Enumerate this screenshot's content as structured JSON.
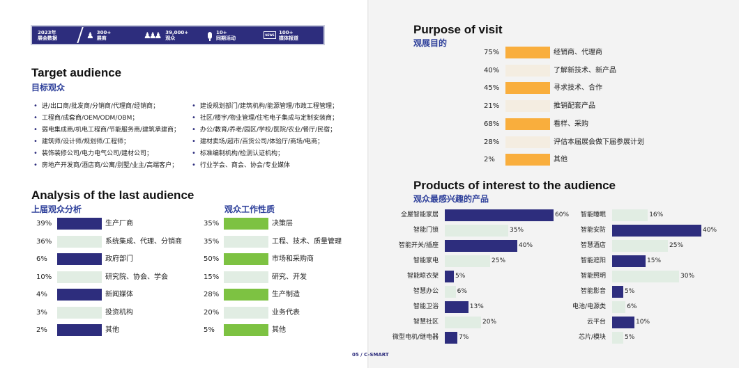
{
  "stats": {
    "year_line1": "2023年",
    "year_line2": "展会数据",
    "items": [
      {
        "icon": "people-icon",
        "value": "300+",
        "label": "展商"
      },
      {
        "icon": "crowd-icon",
        "value": "39,000+",
        "label": "观众"
      },
      {
        "icon": "microphone-icon",
        "value": "10+",
        "label": "同期活动"
      },
      {
        "icon": "news-icon",
        "icon_text": "NEWS",
        "value": "100+",
        "label": "媒体报道"
      }
    ]
  },
  "target": {
    "title": "Target audience",
    "subtitle": "目标观众",
    "left": [
      "进/出口商/批发商/分销商/代理商/经销商；",
      "工程商/成套商/OEM/ODM/OBM；",
      "弱电集成商/机电工程商/节能服务商/建筑承建商；",
      "建筑师/设计师/规划师/工程师；",
      "装饰装修公司/电力电气公司/建材公司；",
      "房地产开发商/酒店商/公寓/别墅/业主/高端客户；"
    ],
    "right": [
      "建设规划部门/建筑机构/能源管理/市政工程管理；",
      "社区/楼宇/物业管理/住宅电子集成与定制安装商；",
      "办公/教育/养老/园区/学校/医院/农业/餐厅/民宿；",
      "建材卖场/超市/百货公司/体验厅/商场/电商；",
      "标准编制机构/检测认证机构；",
      "行业学会、商会、协会/专业媒体"
    ]
  },
  "analysis": {
    "title": "Analysis of the last audience",
    "subtitle": "上届观众分析",
    "color_high": "#2d2d7d",
    "color_low": "#e1ede3",
    "chart_data": {
      "type": "bar",
      "categories": [
        "生产厂商",
        "系统集成、代理、分销商",
        "政府部门",
        "研究院、协会、学会",
        "新闻媒体",
        "投资机构",
        "其他"
      ],
      "values": [
        39,
        36,
        6,
        10,
        4,
        3,
        2
      ],
      "labels": [
        "39%",
        "36%",
        "6%",
        "10%",
        "4%",
        "3%",
        "2%"
      ],
      "highlight": [
        true,
        false,
        true,
        false,
        true,
        false,
        true
      ]
    }
  },
  "work": {
    "subtitle": "观众工作性质",
    "color_high": "#7dc242",
    "color_low": "#e1ede3",
    "chart_data": {
      "type": "bar",
      "categories": [
        "决策层",
        "工程、技术、质量管理",
        "市场和采购商",
        "研究、开发",
        "生产制造",
        "业务代表",
        "其他"
      ],
      "values": [
        35,
        35,
        50,
        15,
        28,
        20,
        5
      ],
      "labels": [
        "35%",
        "35%",
        "50%",
        "15%",
        "28%",
        "20%",
        "5%"
      ],
      "highlight": [
        true,
        false,
        true,
        false,
        true,
        false,
        true
      ]
    }
  },
  "purpose": {
    "title": "Purpose of visit",
    "subtitle": "观展目的",
    "color_high": "#f9ae3d",
    "color_low": "#f4ede1",
    "chart_data": {
      "type": "bar",
      "categories": [
        "经销商、代理商",
        "了解新技术、新产品",
        "寻求技术、合作",
        "推销配套产品",
        "看样、采购",
        "评估本届展会做下届参展计划",
        "其他"
      ],
      "values": [
        75,
        40,
        45,
        21,
        68,
        28,
        2
      ],
      "labels": [
        "75%",
        "40%",
        "45%",
        "21%",
        "68%",
        "28%",
        "2%"
      ],
      "highlight": [
        true,
        false,
        true,
        false,
        true,
        false,
        true
      ]
    }
  },
  "products": {
    "title": "Products of interest to the audience",
    "subtitle": "观众最感兴趣的产品",
    "color_dark": "#2d2d7d",
    "color_light": "#e1ede3",
    "chart_data": [
      {
        "type": "bar",
        "categories": [
          "全屋智能家居",
          "智能门锁",
          "智能开关/插座",
          "智能家电",
          "智能晾衣架",
          "智慧办公",
          "智能卫浴",
          "智慧社区",
          "微型电机/继电器"
        ],
        "values": [
          60,
          35,
          40,
          25,
          5,
          6,
          13,
          20,
          7
        ],
        "labels": [
          "60%",
          "35%",
          "40%",
          "25%",
          "5%",
          "6%",
          "13%",
          "20%",
          "7%"
        ],
        "highlight": [
          true,
          false,
          true,
          false,
          true,
          false,
          true,
          false,
          true
        ]
      },
      {
        "type": "bar",
        "categories": [
          "智能睡眠",
          "智能安防",
          "智慧酒店",
          "智能遮阳",
          "智能照明",
          "智能影音",
          "电池/电源类",
          "云平台",
          "芯片/模块"
        ],
        "values": [
          16,
          40,
          25,
          15,
          30,
          5,
          6,
          10,
          5
        ],
        "labels": [
          "16%",
          "40%",
          "25%",
          "15%",
          "30%",
          "5%",
          "6%",
          "10%",
          "5%"
        ],
        "highlight": [
          false,
          true,
          false,
          true,
          false,
          true,
          false,
          true,
          false
        ]
      }
    ]
  },
  "footer": "05 / C-SMART"
}
